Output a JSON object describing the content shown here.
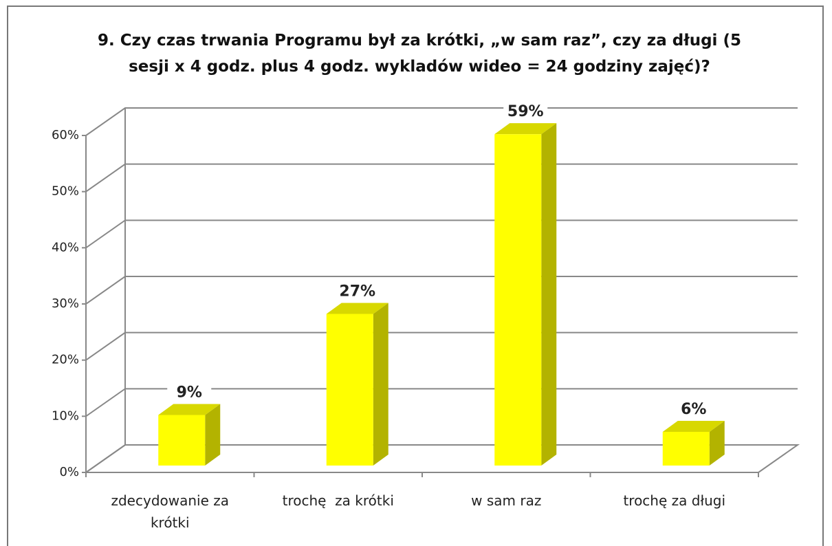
{
  "chart_data": {
    "type": "bar3d",
    "title": "9. Czy czas trwania Programu był za krótki, „w sam raz”, czy za długi (5 sesji x 4 godz. plus 4 godz. wykladów wideo = 24 godziny zajęć)?",
    "categories": [
      "zdecydowanie za krótki",
      "trochę  za krótki",
      "w sam raz",
      "trochę za długi"
    ],
    "values": [
      9,
      27,
      59,
      6
    ],
    "value_labels": [
      "9%",
      "27%",
      "59%",
      "6%"
    ],
    "color": "#ffff00",
    "ylim": [
      0,
      60
    ],
    "yticks": [
      {
        "value": 0,
        "label": "0%"
      },
      {
        "value": 10,
        "label": "10%"
      },
      {
        "value": 20,
        "label": "20%"
      },
      {
        "value": 30,
        "label": "30%"
      },
      {
        "value": 40,
        "label": "40%"
      },
      {
        "value": 50,
        "label": "50%"
      },
      {
        "value": 60,
        "label": "60%"
      }
    ],
    "grid": true
  }
}
